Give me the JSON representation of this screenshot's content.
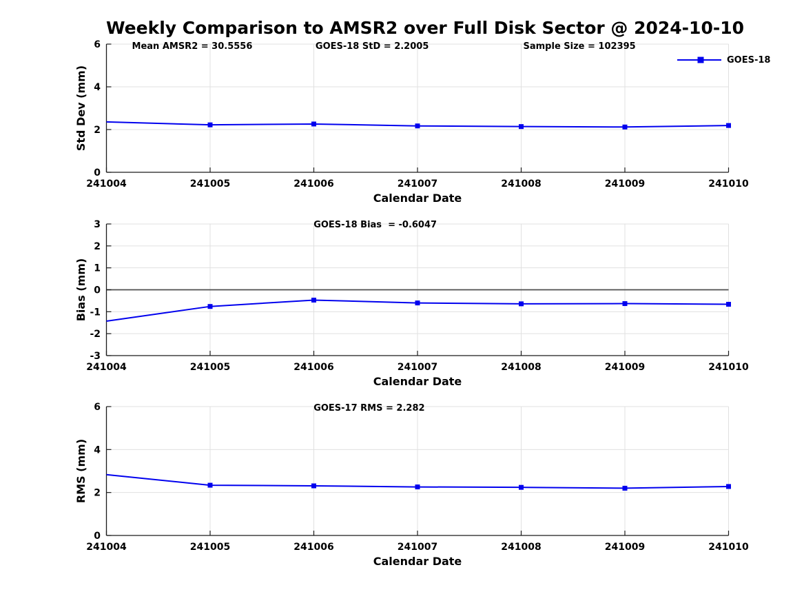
{
  "title": "Weekly Comparison to AMSR2 over Full Disk Sector @ 2024-10-10",
  "legend": {
    "series_label": "GOES-18"
  },
  "colors": {
    "line": "#0000ee",
    "axis": "#1a1a1a",
    "grid": "#e0e0e0",
    "zero_line": "#4d4d4d",
    "text": "#000000",
    "background": "#ffffff"
  },
  "chart_data": [
    {
      "id": "std-dev",
      "type": "line",
      "ylabel": "Std Dev (mm)",
      "xlabel": "Calendar Date",
      "ylim": [
        0,
        6
      ],
      "yticks": [
        0,
        2,
        4,
        6
      ],
      "grid": true,
      "x_categories": [
        "241004",
        "241005",
        "241006",
        "241007",
        "241008",
        "241009",
        "241010"
      ],
      "series": [
        {
          "name": "GOES-18",
          "values": [
            2.36,
            2.22,
            2.26,
            2.17,
            2.14,
            2.12,
            2.19
          ]
        }
      ],
      "annotations": [
        "Mean AMSR2 = 30.5556",
        "GOES-18 StD = 2.2005",
        "Sample Size = 102395"
      ],
      "legend_position": "outside-top-right"
    },
    {
      "id": "bias",
      "type": "line",
      "ylabel": "Bias (mm)",
      "xlabel": "Calendar Date",
      "ylim": [
        -3,
        3
      ],
      "yticks": [
        -3,
        -2,
        -1,
        0,
        1,
        2,
        3
      ],
      "zero_line": true,
      "grid": true,
      "x_categories": [
        "241004",
        "241005",
        "241006",
        "241007",
        "241008",
        "241009",
        "241010"
      ],
      "series": [
        {
          "name": "GOES-18",
          "values": [
            -1.43,
            -0.76,
            -0.47,
            -0.6,
            -0.64,
            -0.63,
            -0.66
          ]
        }
      ],
      "annotations": [
        "GOES-18 Bias  = -0.6047"
      ]
    },
    {
      "id": "rms",
      "type": "line",
      "ylabel": "RMS (mm)",
      "xlabel": "Calendar Date",
      "ylim": [
        0,
        6
      ],
      "yticks": [
        0,
        2,
        4,
        6
      ],
      "grid": true,
      "x_categories": [
        "241004",
        "241005",
        "241006",
        "241007",
        "241008",
        "241009",
        "241010"
      ],
      "series": [
        {
          "name": "GOES-18",
          "values": [
            2.83,
            2.34,
            2.31,
            2.26,
            2.24,
            2.2,
            2.28
          ]
        }
      ],
      "annotations": [
        "GOES-17 RMS = 2.282"
      ]
    }
  ]
}
